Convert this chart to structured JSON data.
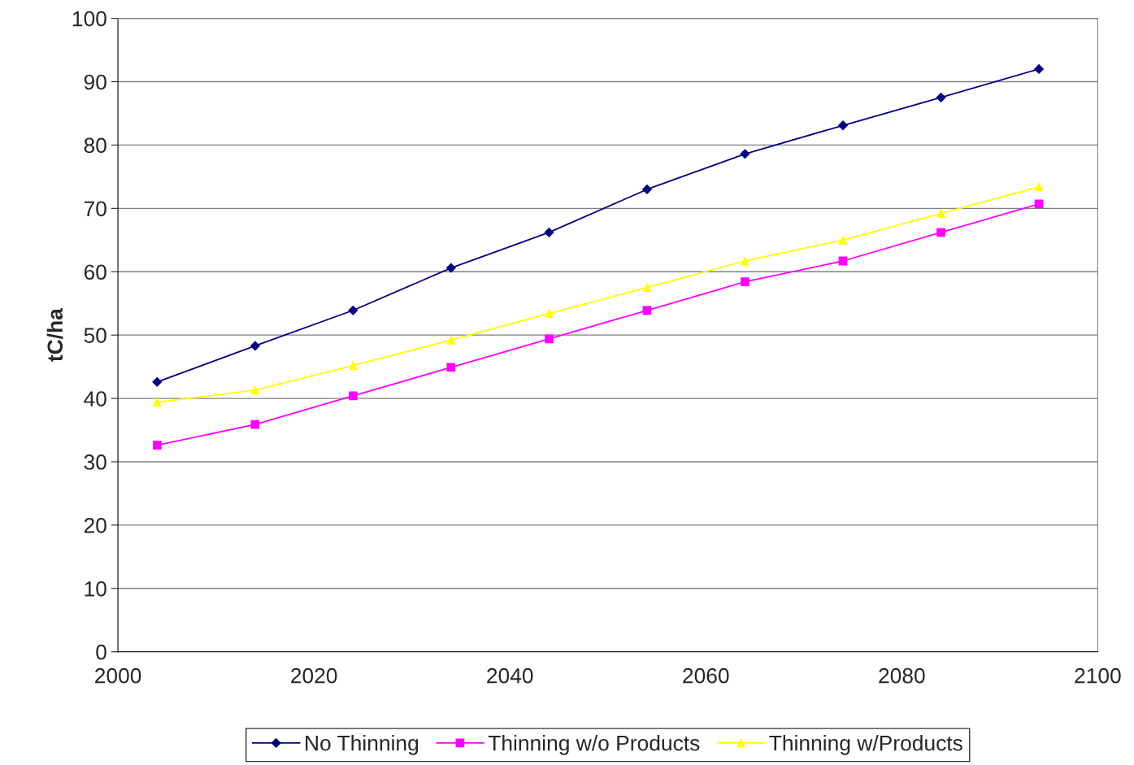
{
  "chart_data": {
    "type": "line",
    "ylabel": "tC/ha",
    "x": [
      2004,
      2014,
      2024,
      2034,
      2044,
      2054,
      2064,
      2074,
      2084,
      2094
    ],
    "series": [
      {
        "name": "No Thinning",
        "color": "#000080",
        "marker": "diamond",
        "values": [
          42.6,
          48.3,
          53.9,
          60.6,
          66.2,
          73.0,
          78.6,
          83.1,
          87.5,
          92.0
        ]
      },
      {
        "name": "Thinning w/o Products",
        "color": "#ff00ff",
        "marker": "square",
        "values": [
          32.6,
          35.9,
          40.4,
          44.9,
          49.4,
          53.9,
          58.4,
          61.7,
          66.2,
          70.7
        ]
      },
      {
        "name": "Thinning w/Products",
        "color": "#ffff00",
        "marker": "triangle",
        "values": [
          39.4,
          41.3,
          45.2,
          49.2,
          53.4,
          57.5,
          61.7,
          65.0,
          69.2,
          73.4
        ]
      }
    ],
    "xlim": [
      2000,
      2100
    ],
    "xticks": [
      2000,
      2020,
      2040,
      2060,
      2080,
      2100
    ],
    "ylim": [
      0,
      100
    ],
    "yticks": [
      0,
      10,
      20,
      30,
      40,
      50,
      60,
      70,
      80,
      90,
      100
    ],
    "grid": "y",
    "legend": "bottom",
    "line_style": "solid"
  }
}
